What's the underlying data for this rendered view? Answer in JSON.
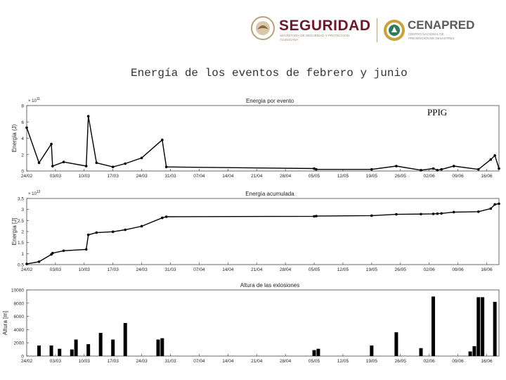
{
  "header": {
    "seguridad": "SEGURIDAD",
    "seguridad_sub": "SECRETARÍA DE SEGURIDAD Y PROTECCIÓN CIUDADANA",
    "cenapred": "CENAPRED",
    "cenapred_sub": "CENTRO NACIONAL DE PREVENCIÓN DE DESASTRES"
  },
  "slide_title": "Energía de los eventos de febrero y junio",
  "ppig_label": "PPIG",
  "colors": {
    "brand": "#6e1a2e",
    "gold": "#b8a07a",
    "axis": "#222222"
  },
  "chart_data": [
    {
      "type": "line",
      "title": "Energía por evento",
      "ylabel": "Energía (J)",
      "exponent": "× 10",
      "exponent_power": "11",
      "yticks": [
        0,
        2,
        4,
        6,
        8
      ],
      "ylim": [
        0,
        8
      ],
      "xlim": [
        0,
        115
      ],
      "xticks": [
        0,
        7,
        14,
        21,
        28,
        35,
        42,
        49,
        56,
        63,
        70,
        77,
        84,
        91,
        98,
        105,
        112
      ],
      "xtick_labels": [
        "24/02",
        "03/03",
        "10/03",
        "17/03",
        "24/03",
        "31/03",
        "07/04",
        "14/04",
        "21/04",
        "28/04",
        "05/05",
        "12/05",
        "19/05",
        "26/05",
        "02/06",
        "09/06",
        "16/06"
      ],
      "x": [
        0,
        3,
        6,
        6.3,
        9,
        14.5,
        15,
        17,
        21,
        24,
        28,
        33,
        34,
        70,
        70.5,
        84,
        90,
        96,
        99,
        100,
        101,
        104,
        110,
        113,
        114,
        115
      ],
      "y": [
        5.3,
        1.0,
        3.3,
        0.6,
        1.1,
        0.6,
        6.7,
        1.0,
        0.5,
        0.9,
        1.6,
        3.8,
        0.5,
        0.3,
        0.2,
        0.2,
        0.6,
        0.1,
        0.3,
        0.1,
        0.2,
        0.6,
        0.2,
        1.4,
        1.9,
        0.3
      ]
    },
    {
      "type": "line",
      "title": "Energía acumulada",
      "ylabel": "Energía [J]",
      "exponent": "× 10",
      "exponent_power": "12",
      "yticks": [
        0.5,
        1,
        1.5,
        2,
        2.5,
        3,
        3.5
      ],
      "ylim": [
        0.5,
        3.5
      ],
      "xlim": [
        0,
        115
      ],
      "xticks": [
        0,
        7,
        14,
        21,
        28,
        35,
        42,
        49,
        56,
        63,
        70,
        77,
        84,
        91,
        98,
        105,
        112
      ],
      "xtick_labels": [
        "24/02",
        "03/03",
        "10/03",
        "17/03",
        "24/03",
        "31/03",
        "07/04",
        "14/04",
        "21/04",
        "28/04",
        "05/05",
        "12/05",
        "19/05",
        "26/05",
        "02/06",
        "09/06",
        "16/06"
      ],
      "x": [
        0,
        3,
        6,
        6.3,
        9,
        14.5,
        15,
        17,
        21,
        24,
        28,
        33,
        34,
        70,
        70.5,
        84,
        90,
        96,
        99,
        100,
        101,
        104,
        110,
        113,
        114,
        115
      ],
      "y": [
        0.53,
        0.63,
        0.96,
        1.02,
        1.13,
        1.19,
        1.85,
        1.95,
        1.99,
        2.08,
        2.24,
        2.62,
        2.67,
        2.69,
        2.7,
        2.72,
        2.78,
        2.79,
        2.8,
        2.81,
        2.82,
        2.88,
        2.9,
        3.04,
        3.23,
        3.26
      ]
    },
    {
      "type": "bar",
      "title": "Altura de las exlosiones",
      "ylabel": "Altura [m]",
      "yticks": [
        0,
        2000,
        4000,
        6000,
        8000,
        10000
      ],
      "ylim": [
        0,
        10000
      ],
      "xlim": [
        0,
        115
      ],
      "xticks": [
        0,
        7,
        14,
        21,
        28,
        35,
        42,
        49,
        56,
        63,
        70,
        77,
        84,
        91,
        98,
        105,
        112
      ],
      "xtick_labels": [
        "24/02",
        "03/03",
        "10/03",
        "17/03",
        "24/03",
        "31/03",
        "07/04",
        "14/04",
        "21/04",
        "28/04",
        "05/05",
        "12/05",
        "19/05",
        "26/05",
        "02/06",
        "09/06",
        "16/06"
      ],
      "x": [
        3,
        6,
        8,
        11,
        12,
        15,
        18,
        21,
        24,
        32,
        33,
        70,
        71,
        84,
        90,
        96,
        99,
        108,
        109,
        110,
        111,
        114
      ],
      "values": [
        1600,
        1600,
        1100,
        1000,
        2500,
        1800,
        3500,
        2500,
        5000,
        2500,
        2700,
        900,
        1100,
        1600,
        3600,
        1200,
        9000,
        700,
        1500,
        8900,
        8900,
        8200
      ]
    }
  ]
}
